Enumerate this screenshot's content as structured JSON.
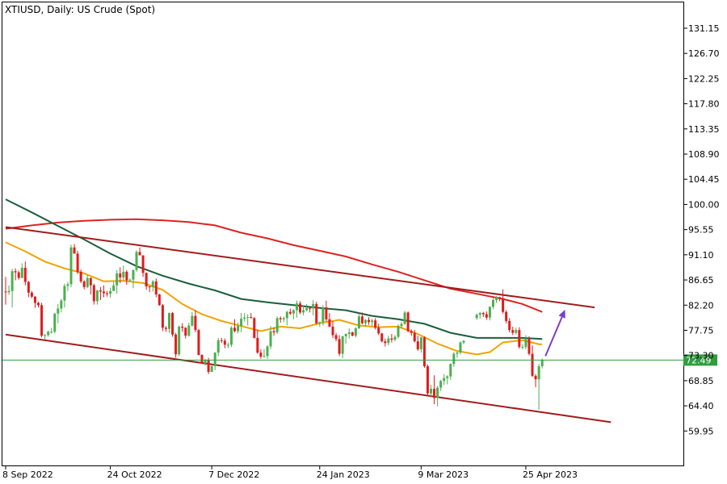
{
  "chart_data": {
    "type": "candlestick",
    "title": "XTIUSD, Daily:  US Crude (Spot)",
    "y_ticks": [
      "131.15",
      "126.70",
      "122.25",
      "117.80",
      "113.35",
      "108.90",
      "104.45",
      "100.00",
      "95.55",
      "91.10",
      "86.65",
      "82.20",
      "77.75",
      "73.30",
      "68.85",
      "64.40",
      "59.95"
    ],
    "x_ticks": [
      {
        "label": "8 Sep 2022",
        "index": 0
      },
      {
        "label": "24 Oct 2022",
        "index": 32
      },
      {
        "label": "7 Dec 2022",
        "index": 63
      },
      {
        "label": "24 Jan 2023",
        "index": 96
      },
      {
        "label": "9 Mar 2023",
        "index": 127
      },
      {
        "label": "25 Apr 2023",
        "index": 159
      }
    ],
    "ylim": [
      56.0,
      134.0
    ],
    "current_price": {
      "value": 72.49,
      "label": "72.49",
      "color": "#2e9e3e"
    },
    "colors": {
      "bull": "#4caf50",
      "bear": "#e11b1b",
      "ma_fast": "#f0a400",
      "ma_mid": "#1b5e3b",
      "ma_slow": "#dd2222",
      "channel": "#a01c1c",
      "arrow": "#7b3fc4"
    },
    "candles": [
      [
        84.6,
        87.2,
        82.3,
        84.5
      ],
      [
        84.5,
        85.7,
        84.0,
        84.7
      ],
      [
        84.7,
        88.6,
        81.8,
        88.2
      ],
      [
        88.2,
        88.7,
        86.6,
        88.0
      ],
      [
        88.0,
        88.3,
        86.7,
        87.0
      ],
      [
        87.0,
        89.6,
        87.0,
        88.8
      ],
      [
        88.8,
        89.9,
        85.7,
        86.3
      ],
      [
        86.3,
        86.5,
        83.6,
        84.4
      ],
      [
        84.4,
        84.7,
        83.4,
        83.7
      ],
      [
        83.7,
        83.8,
        81.7,
        82.6
      ],
      [
        82.6,
        82.8,
        81.8,
        82.2
      ],
      [
        82.2,
        82.6,
        76.5,
        76.8
      ],
      [
        76.8,
        77.1,
        76.1,
        76.9
      ],
      [
        76.9,
        77.7,
        76.6,
        77.5
      ],
      [
        77.5,
        78.2,
        77.2,
        77.5
      ],
      [
        77.5,
        80.8,
        77.2,
        80.7
      ],
      [
        80.7,
        82.4,
        79.0,
        81.6
      ],
      [
        81.6,
        83.3,
        80.9,
        83.0
      ],
      [
        83.0,
        86.0,
        81.8,
        85.6
      ],
      [
        85.6,
        86.3,
        84.7,
        85.9
      ],
      [
        85.9,
        92.9,
        85.4,
        92.4
      ],
      [
        92.4,
        93.0,
        91.3,
        91.3
      ],
      [
        91.3,
        91.8,
        87.7,
        88.1
      ],
      [
        88.1,
        88.5,
        86.1,
        86.4
      ],
      [
        86.4,
        86.6,
        85.0,
        85.4
      ],
      [
        85.4,
        87.5,
        85.2,
        87.0
      ],
      [
        87.0,
        87.1,
        84.1,
        85.7
      ],
      [
        85.7,
        86.0,
        82.3,
        82.9
      ],
      [
        82.9,
        84.9,
        82.3,
        84.8
      ],
      [
        84.8,
        85.4,
        83.1,
        84.6
      ],
      [
        84.6,
        85.7,
        83.6,
        84.3
      ],
      [
        84.3,
        84.7,
        83.7,
        84.2
      ],
      [
        84.2,
        85.3,
        83.5,
        84.7
      ],
      [
        84.7,
        86.3,
        84.7,
        85.7
      ],
      [
        85.7,
        88.4,
        84.2,
        87.8
      ],
      [
        87.8,
        88.9,
        86.1,
        87.1
      ],
      [
        87.1,
        89.2,
        86.6,
        88.1
      ],
      [
        88.1,
        88.4,
        85.8,
        86.6
      ],
      [
        86.6,
        86.9,
        86.4,
        86.7
      ],
      [
        86.7,
        88.5,
        85.2,
        88.4
      ],
      [
        88.4,
        91.9,
        88.1,
        91.6
      ],
      [
        91.6,
        92.4,
        91.0,
        91.0
      ],
      [
        91.0,
        91.0,
        87.2,
        87.9
      ],
      [
        87.9,
        88.0,
        84.9,
        85.5
      ],
      [
        85.5,
        85.6,
        84.5,
        85.4
      ],
      [
        85.4,
        86.6,
        84.6,
        86.4
      ],
      [
        86.4,
        86.9,
        83.6,
        84.1
      ],
      [
        84.1,
        84.2,
        82.1,
        82.2
      ],
      [
        82.2,
        82.4,
        77.6,
        78.2
      ],
      [
        78.2,
        78.5,
        77.5,
        78.0
      ],
      [
        78.0,
        80.9,
        77.3,
        80.8
      ],
      [
        80.8,
        81.0,
        76.6,
        77.0
      ],
      [
        77.0,
        77.3,
        72.9,
        73.5
      ],
      [
        73.5,
        78.6,
        73.2,
        78.4
      ],
      [
        78.4,
        79.0,
        77.5,
        78.2
      ],
      [
        78.2,
        78.3,
        76.3,
        76.8
      ],
      [
        76.8,
        79.1,
        76.6,
        78.6
      ],
      [
        78.6,
        81.0,
        78.4,
        80.3
      ],
      [
        80.3,
        81.3,
        77.4,
        77.8
      ],
      [
        77.8,
        78.0,
        73.3,
        73.4
      ],
      [
        73.4,
        73.5,
        71.8,
        71.9
      ],
      [
        71.9,
        72.7,
        71.5,
        72.5
      ],
      [
        72.5,
        72.9,
        70.0,
        70.4
      ],
      [
        70.4,
        71.6,
        70.4,
        71.4
      ],
      [
        71.4,
        73.9,
        70.7,
        73.8
      ],
      [
        73.8,
        76.4,
        73.2,
        76.0
      ],
      [
        76.0,
        76.4,
        75.5,
        75.9
      ],
      [
        75.9,
        76.3,
        74.6,
        75.2
      ],
      [
        75.2,
        75.6,
        74.6,
        75.2
      ],
      [
        75.2,
        78.5,
        74.8,
        78.2
      ],
      [
        78.2,
        79.7,
        77.4,
        77.6
      ],
      [
        77.6,
        79.1,
        77.2,
        78.5
      ],
      [
        78.5,
        80.8,
        77.4,
        79.8
      ],
      [
        79.8,
        80.8,
        79.3,
        80.0
      ],
      [
        80.0,
        80.6,
        78.6,
        80.1
      ],
      [
        80.1,
        80.8,
        79.9,
        79.9
      ],
      [
        79.9,
        80.1,
        76.3,
        76.4
      ],
      [
        76.4,
        77.9,
        73.6,
        73.8
      ],
      [
        73.8,
        74.4,
        72.7,
        73.1
      ],
      [
        73.1,
        74.4,
        72.9,
        73.2
      ],
      [
        73.2,
        75.1,
        72.7,
        74.9
      ],
      [
        74.9,
        78.5,
        74.4,
        77.6
      ],
      [
        77.6,
        78.3,
        76.8,
        77.4
      ],
      [
        77.4,
        80.2,
        77.1,
        79.9
      ],
      [
        79.9,
        80.2,
        79.1,
        79.7
      ],
      [
        79.7,
        80.2,
        79.2,
        79.9
      ],
      [
        79.9,
        81.2,
        78.6,
        81.0
      ],
      [
        81.0,
        81.6,
        80.5,
        80.7
      ],
      [
        80.7,
        81.5,
        79.7,
        81.3
      ],
      [
        81.3,
        83.0,
        80.0,
        82.5
      ],
      [
        82.5,
        82.9,
        80.6,
        80.9
      ],
      [
        80.9,
        82.1,
        80.4,
        81.3
      ],
      [
        81.3,
        82.4,
        81.1,
        81.7
      ],
      [
        81.7,
        81.8,
        80.9,
        81.6
      ],
      [
        81.6,
        83.1,
        80.4,
        82.4
      ],
      [
        82.4,
        82.8,
        78.8,
        79.0
      ],
      [
        79.0,
        79.3,
        78.4,
        79.2
      ],
      [
        79.2,
        82.2,
        78.6,
        81.8
      ],
      [
        81.8,
        83.0,
        79.3,
        79.7
      ],
      [
        79.7,
        80.8,
        78.3,
        78.4
      ],
      [
        78.4,
        79.4,
        76.4,
        76.9
      ],
      [
        76.9,
        77.3,
        75.8,
        76.2
      ],
      [
        76.2,
        76.9,
        73.2,
        73.6
      ],
      [
        73.6,
        76.8,
        72.8,
        76.7
      ],
      [
        76.7,
        77.2,
        75.4,
        77.1
      ],
      [
        77.1,
        78.1,
        76.3,
        77.4
      ],
      [
        77.4,
        77.5,
        76.7,
        76.8
      ],
      [
        76.8,
        78.3,
        76.5,
        78.1
      ],
      [
        78.1,
        80.6,
        78.0,
        80.2
      ],
      [
        80.2,
        80.9,
        78.8,
        79.0
      ],
      [
        79.0,
        79.7,
        78.4,
        79.6
      ],
      [
        79.6,
        80.1,
        78.7,
        79.2
      ],
      [
        79.2,
        79.8,
        78.5,
        79.5
      ],
      [
        79.5,
        79.9,
        77.9,
        78.2
      ],
      [
        78.2,
        78.9,
        76.9,
        77.2
      ],
      [
        77.2,
        77.3,
        75.6,
        75.8
      ],
      [
        75.8,
        76.3,
        74.9,
        75.5
      ],
      [
        75.5,
        76.8,
        75.1,
        76.3
      ],
      [
        76.3,
        77.1,
        75.6,
        76.1
      ],
      [
        76.1,
        76.9,
        75.8,
        76.6
      ],
      [
        76.6,
        78.8,
        76.3,
        78.5
      ],
      [
        78.5,
        79.2,
        78.1,
        78.9
      ],
      [
        78.9,
        81.2,
        78.7,
        80.9
      ],
      [
        80.9,
        81.1,
        77.4,
        77.6
      ],
      [
        77.6,
        77.9,
        76.8,
        77.3
      ],
      [
        77.3,
        77.8,
        75.6,
        75.8
      ],
      [
        75.8,
        76.8,
        74.1,
        74.4
      ],
      [
        74.4,
        76.6,
        73.8,
        76.5
      ],
      [
        76.5,
        76.7,
        71.1,
        71.4
      ],
      [
        71.4,
        71.7,
        66.3,
        66.6
      ],
      [
        66.6,
        68.1,
        65.9,
        67.4
      ],
      [
        67.4,
        69.8,
        64.7,
        65.8
      ],
      [
        65.8,
        67.9,
        64.3,
        67.6
      ],
      [
        67.6,
        69.0,
        67.0,
        68.8
      ],
      [
        68.8,
        70.0,
        68.1,
        69.3
      ],
      [
        69.3,
        69.8,
        68.2,
        69.6
      ],
      [
        69.6,
        71.9,
        69.0,
        71.8
      ],
      [
        71.8,
        73.9,
        71.3,
        73.6
      ],
      [
        73.6,
        74.0,
        72.9,
        73.8
      ],
      [
        73.8,
        75.8,
        73.5,
        75.6
      ],
      [
        75.6,
        76.0,
        75.3,
        75.9
      ],
      [
        null,
        null,
        null,
        null
      ],
      [
        null,
        null,
        null,
        null
      ],
      [
        null,
        null,
        null,
        null
      ],
      [
        79.9,
        80.7,
        79.6,
        80.5
      ],
      [
        80.5,
        81.0,
        79.8,
        80.8
      ],
      [
        80.8,
        81.0,
        80.1,
        80.6
      ],
      [
        80.6,
        81.1,
        79.6,
        80.0
      ],
      [
        80.0,
        82.0,
        79.5,
        81.9
      ],
      [
        81.9,
        83.5,
        81.5,
        83.1
      ],
      [
        83.1,
        83.8,
        82.6,
        83.6
      ],
      [
        83.6,
        83.7,
        82.9,
        83.4
      ],
      [
        83.4,
        85.0,
        80.7,
        81.0
      ],
      [
        81.0,
        81.3,
        79.0,
        79.4
      ],
      [
        79.4,
        79.9,
        77.4,
        77.8
      ],
      [
        77.8,
        78.4,
        76.9,
        77.3
      ],
      [
        77.3,
        78.2,
        77.0,
        77.8
      ],
      [
        77.8,
        78.3,
        74.5,
        74.8
      ],
      [
        74.8,
        75.3,
        74.4,
        74.8
      ],
      [
        74.8,
        76.9,
        74.4,
        76.3
      ],
      [
        76.3,
        76.7,
        73.3,
        73.6
      ],
      [
        73.6,
        75.1,
        69.5,
        69.7
      ],
      [
        69.7,
        70.0,
        67.7,
        69.1
      ],
      [
        69.1,
        71.8,
        63.7,
        71.4
      ],
      [
        71.4,
        72.8,
        71.0,
        72.49
      ]
    ],
    "ma_fast": [
      [
        0,
        93.3
      ],
      [
        6,
        91.7
      ],
      [
        12,
        89.9
      ],
      [
        18,
        88.7
      ],
      [
        24,
        87.8
      ],
      [
        30,
        86.4
      ],
      [
        36,
        86.5
      ],
      [
        42,
        86.1
      ],
      [
        48,
        84.9
      ],
      [
        54,
        82.4
      ],
      [
        60,
        80.6
      ],
      [
        66,
        79.4
      ],
      [
        72,
        78.5
      ],
      [
        78,
        77.6
      ],
      [
        84,
        78.4
      ],
      [
        90,
        78.1
      ],
      [
        96,
        79.0
      ],
      [
        102,
        79.6
      ],
      [
        108,
        78.6
      ],
      [
        114,
        78.3
      ],
      [
        120,
        78.4
      ],
      [
        126,
        77.1
      ],
      [
        132,
        75.4
      ],
      [
        138,
        74.1
      ],
      [
        144,
        73.5
      ],
      [
        148,
        73.9
      ],
      [
        152,
        75.6
      ],
      [
        158,
        76.0
      ],
      [
        163,
        75.3
      ],
      [
        164,
        75.3
      ]
    ],
    "ma_mid": [
      [
        0,
        100.9
      ],
      [
        8,
        98.6
      ],
      [
        16,
        96.2
      ],
      [
        24,
        93.8
      ],
      [
        32,
        91.3
      ],
      [
        40,
        89.1
      ],
      [
        48,
        87.4
      ],
      [
        56,
        86.0
      ],
      [
        64,
        84.8
      ],
      [
        72,
        83.3
      ],
      [
        80,
        82.7
      ],
      [
        88,
        82.2
      ],
      [
        96,
        81.7
      ],
      [
        104,
        81.3
      ],
      [
        112,
        80.3
      ],
      [
        120,
        79.7
      ],
      [
        128,
        78.9
      ],
      [
        136,
        77.3
      ],
      [
        144,
        76.4
      ],
      [
        152,
        76.4
      ],
      [
        158,
        76.4
      ],
      [
        164,
        76.2
      ]
    ],
    "ma_slow": [
      [
        0,
        95.7
      ],
      [
        8,
        96.3
      ],
      [
        16,
        96.8
      ],
      [
        24,
        97.1
      ],
      [
        32,
        97.3
      ],
      [
        40,
        97.4
      ],
      [
        48,
        97.2
      ],
      [
        56,
        96.9
      ],
      [
        64,
        96.3
      ],
      [
        72,
        95.0
      ],
      [
        80,
        94.0
      ],
      [
        88,
        92.8
      ],
      [
        96,
        91.8
      ],
      [
        104,
        90.8
      ],
      [
        112,
        89.4
      ],
      [
        120,
        88.1
      ],
      [
        128,
        86.6
      ],
      [
        136,
        85.1
      ],
      [
        144,
        84.2
      ],
      [
        152,
        83.3
      ],
      [
        158,
        82.4
      ],
      [
        164,
        81.0
      ]
    ],
    "channel_upper": [
      [
        0,
        96.0
      ],
      [
        180,
        81.8
      ]
    ],
    "channel_lower": [
      [
        0,
        77.0
      ],
      [
        185,
        61.5
      ]
    ],
    "arrow": [
      [
        165,
        73.2
      ],
      [
        171,
        81.4
      ]
    ]
  }
}
